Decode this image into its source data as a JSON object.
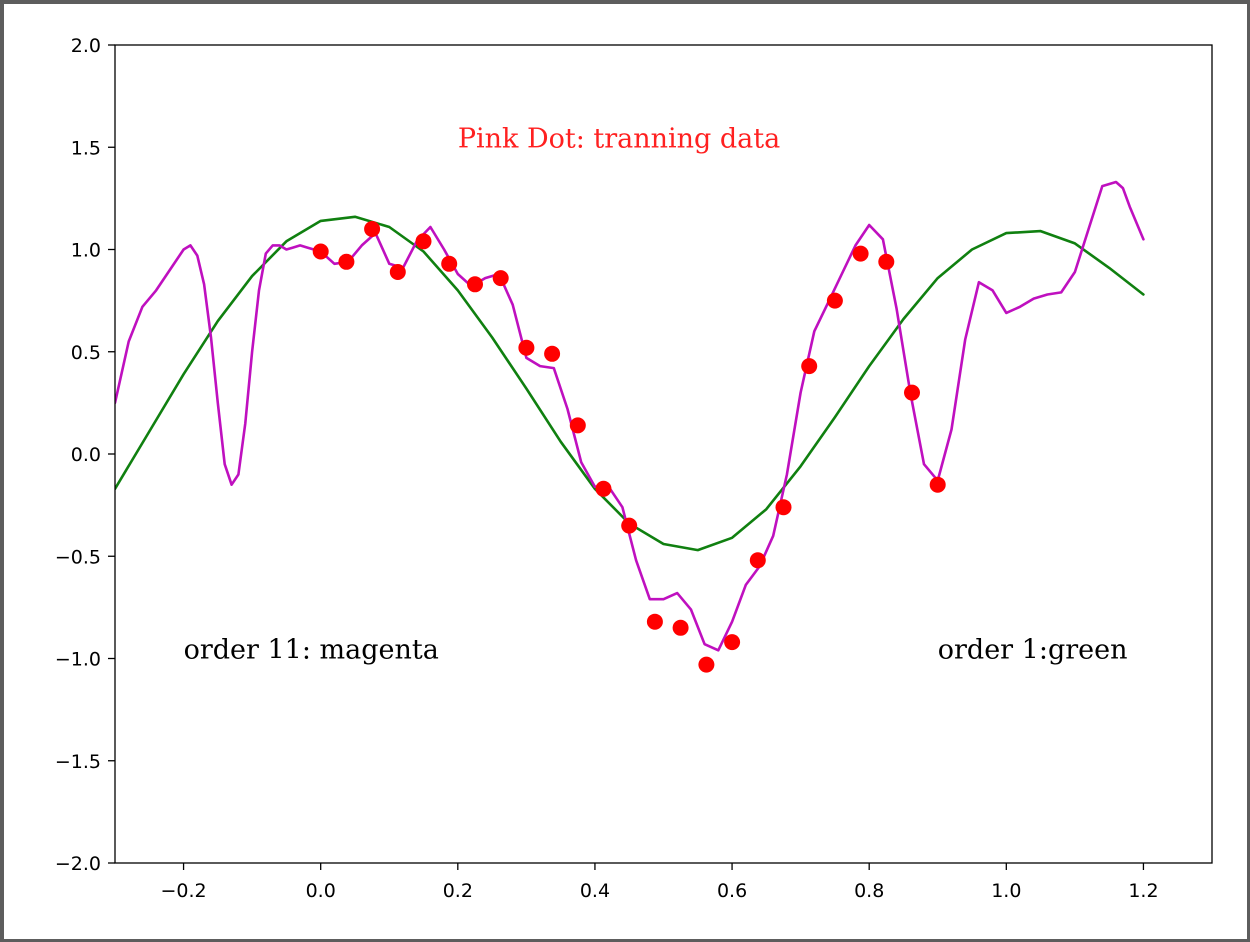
{
  "chart_data": {
    "type": "line",
    "title": "",
    "xlabel": "",
    "ylabel": "",
    "xlim": [
      -0.3,
      1.3
    ],
    "ylim": [
      -2.0,
      2.0
    ],
    "x_ticks": [
      -0.2,
      0.0,
      0.2,
      0.4,
      0.6,
      0.8,
      1.0,
      1.2
    ],
    "x_tick_labels": [
      "−0.2",
      "0.0",
      "0.2",
      "0.4",
      "0.6",
      "0.8",
      "1.0",
      "1.2"
    ],
    "y_ticks": [
      2.0,
      1.5,
      1.0,
      0.5,
      0.0,
      -0.5,
      -1.0,
      -1.5,
      -2.0
    ],
    "y_tick_labels": [
      "2.0",
      "1.5",
      "1.0",
      "0.5",
      "0.0",
      "−0.5",
      "−1.0",
      "−1.5",
      "−2.0"
    ],
    "grid": false,
    "annotations": [
      {
        "text": "Pink Dot: tranning data",
        "x": 0.2,
        "y": 1.5,
        "color": "#ff2020"
      },
      {
        "text": "order 11: magenta",
        "x": -0.2,
        "y": -1.0,
        "color": "#000000"
      },
      {
        "text": "order 1:green",
        "x": 0.9,
        "y": -1.0,
        "color": "#000000"
      }
    ],
    "series": [
      {
        "kind": "line",
        "color": "#108010",
        "x": [
          -0.3,
          -0.25,
          -0.2,
          -0.15,
          -0.1,
          -0.05,
          0.0,
          0.05,
          0.1,
          0.15,
          0.2,
          0.25,
          0.3,
          0.35,
          0.4,
          0.45,
          0.5,
          0.55,
          0.6,
          0.65,
          0.7,
          0.75,
          0.8,
          0.85,
          0.9,
          0.95,
          1.0,
          1.05,
          1.1,
          1.15,
          1.2
        ],
        "y": [
          -0.17,
          0.11,
          0.39,
          0.65,
          0.87,
          1.04,
          1.14,
          1.16,
          1.11,
          0.99,
          0.8,
          0.57,
          0.32,
          0.06,
          -0.17,
          -0.34,
          -0.44,
          -0.47,
          -0.41,
          -0.27,
          -0.06,
          0.18,
          0.43,
          0.66,
          0.86,
          1.0,
          1.08,
          1.09,
          1.03,
          0.91,
          0.78
        ]
      },
      {
        "kind": "line",
        "color": "#bf10bf",
        "x": [
          -0.3,
          -0.28,
          -0.26,
          -0.24,
          -0.22,
          -0.2,
          -0.19,
          -0.18,
          -0.17,
          -0.16,
          -0.15,
          -0.14,
          -0.13,
          -0.12,
          -0.11,
          -0.1,
          -0.09,
          -0.08,
          -0.07,
          -0.06,
          -0.05,
          -0.04,
          -0.03,
          -0.02,
          -0.01,
          0.0,
          0.02,
          0.04,
          0.06,
          0.08,
          0.1,
          0.12,
          0.14,
          0.16,
          0.18,
          0.2,
          0.22,
          0.24,
          0.26,
          0.28,
          0.3,
          0.32,
          0.34,
          0.36,
          0.38,
          0.4,
          0.42,
          0.44,
          0.46,
          0.48,
          0.5,
          0.52,
          0.54,
          0.56,
          0.58,
          0.6,
          0.62,
          0.64,
          0.66,
          0.68,
          0.7,
          0.72,
          0.74,
          0.76,
          0.78,
          0.8,
          0.82,
          0.84,
          0.86,
          0.88,
          0.9,
          0.92,
          0.94,
          0.96,
          0.98,
          1.0,
          1.02,
          1.04,
          1.06,
          1.08,
          1.1,
          1.12,
          1.14,
          1.16,
          1.17,
          1.18,
          1.2
        ],
        "y": [
          0.25,
          0.55,
          0.72,
          0.8,
          0.9,
          1.0,
          1.02,
          0.97,
          0.83,
          0.57,
          0.25,
          -0.05,
          -0.15,
          -0.1,
          0.15,
          0.5,
          0.8,
          0.98,
          1.02,
          1.02,
          1.0,
          1.01,
          1.02,
          1.01,
          1.0,
          0.99,
          0.93,
          0.94,
          1.02,
          1.08,
          0.93,
          0.91,
          1.04,
          1.11,
          1.0,
          0.88,
          0.82,
          0.86,
          0.88,
          0.73,
          0.47,
          0.43,
          0.42,
          0.22,
          -0.04,
          -0.16,
          -0.16,
          -0.26,
          -0.52,
          -0.71,
          -0.71,
          -0.68,
          -0.76,
          -0.93,
          -0.96,
          -0.82,
          -0.64,
          -0.55,
          -0.4,
          -0.1,
          0.3,
          0.6,
          0.74,
          0.88,
          1.02,
          1.12,
          1.05,
          0.71,
          0.3,
          -0.05,
          -0.13,
          0.12,
          0.56,
          0.84,
          0.8,
          0.69,
          0.72,
          0.76,
          0.78,
          0.79,
          0.89,
          1.1,
          1.31,
          1.33,
          1.3,
          1.21,
          1.05
        ]
      },
      {
        "kind": "scatter",
        "color": "#ff0000",
        "x": [
          0.0,
          0.0375,
          0.075,
          0.1125,
          0.15,
          0.1875,
          0.225,
          0.2625,
          0.3,
          0.3375,
          0.375,
          0.4125,
          0.45,
          0.4875,
          0.525,
          0.5625,
          0.6,
          0.6375,
          0.675,
          0.7125,
          0.75,
          0.7875,
          0.825,
          0.8625,
          0.9
        ],
        "y": [
          0.99,
          0.94,
          1.1,
          0.89,
          1.04,
          0.93,
          0.83,
          0.86,
          0.52,
          0.49,
          0.14,
          -0.17,
          -0.35,
          -0.82,
          -0.85,
          -1.03,
          -0.92,
          -0.52,
          -0.26,
          0.43,
          0.75,
          0.98,
          0.94,
          0.3,
          -0.15
        ]
      }
    ]
  }
}
